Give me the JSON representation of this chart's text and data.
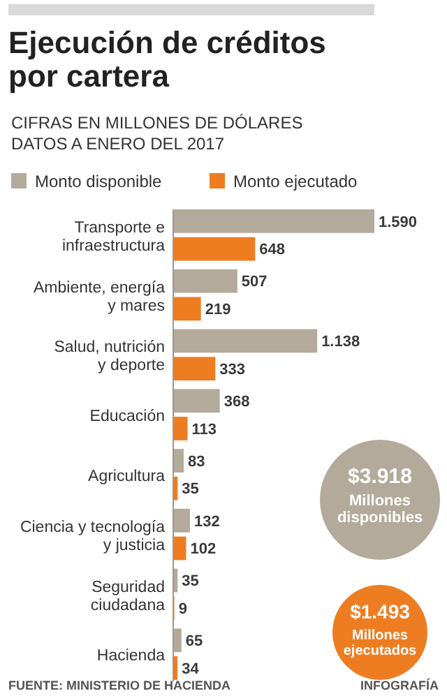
{
  "chart_data": {
    "type": "bar",
    "orientation": "horizontal",
    "title": "Ejecución de créditos por cartera",
    "subtitle": "CIFRAS EN MILLONES DE DÓLARES\nDATOS A ENERO DEL 2017",
    "categories": [
      "Transporte e\ninfraestructura",
      "Ambiente, energía\ny mares",
      "Salud, nutrición\ny deporte",
      "Educación",
      "Agricultura",
      "Ciencia y tecnología\ny justicia",
      "Seguridad\nciudadana",
      "Hacienda"
    ],
    "series": [
      {
        "name": "Monto disponible",
        "color": "#b3aa9b",
        "values": [
          1590,
          507,
          1138,
          368,
          83,
          132,
          35,
          65
        ],
        "value_labels": [
          "1.590",
          "507",
          "1.138",
          "368",
          "83",
          "132",
          "35",
          "65"
        ]
      },
      {
        "name": "Monto ejecutado",
        "color": "#ee7d22",
        "values": [
          648,
          219,
          333,
          113,
          35,
          102,
          9,
          34
        ],
        "value_labels": [
          "648",
          "219",
          "333",
          "113",
          "35",
          "102",
          "9",
          "34"
        ]
      }
    ],
    "legend": "top",
    "annotations": [
      "$3.918\nMillones\ndisponibles",
      "$1.493\nMillones\nejecutados",
      "FUENTE: MINISTERIO DE HACIENDA",
      "INFOGRAFÍA"
    ]
  }
}
